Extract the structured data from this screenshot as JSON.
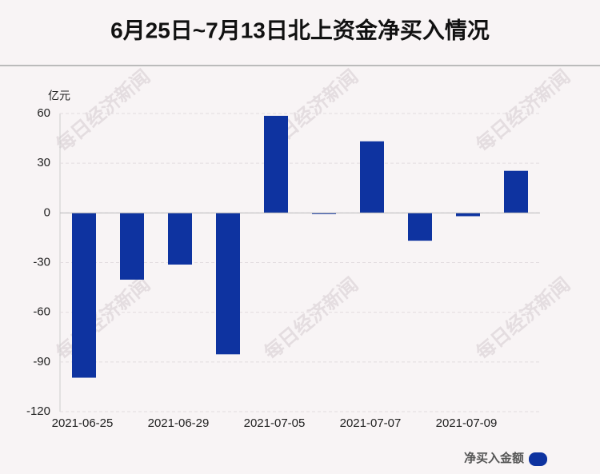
{
  "chart_data": {
    "type": "bar",
    "title": "6月25日~7月13日北上资金净买入情况",
    "y_label": "亿元",
    "watermark": "每日经济新闻",
    "categories": [
      "2021-06-25",
      null,
      "2021-06-29",
      null,
      "2021-07-05",
      null,
      "2021-07-07",
      null,
      "2021-07-09",
      null
    ],
    "series": [
      {
        "name": "净买入金额",
        "color": "#0e33a0",
        "values": [
          -99.5,
          -40.3,
          -31.2,
          -85.4,
          58.6,
          -0.7,
          43.2,
          -16.8,
          -2,
          25.4
        ]
      }
    ],
    "ylim": [
      -120,
      60
    ],
    "yticks": [
      -120,
      -90,
      -60,
      -30,
      0,
      30,
      60
    ],
    "grid": true,
    "legend": "bottom-right"
  }
}
